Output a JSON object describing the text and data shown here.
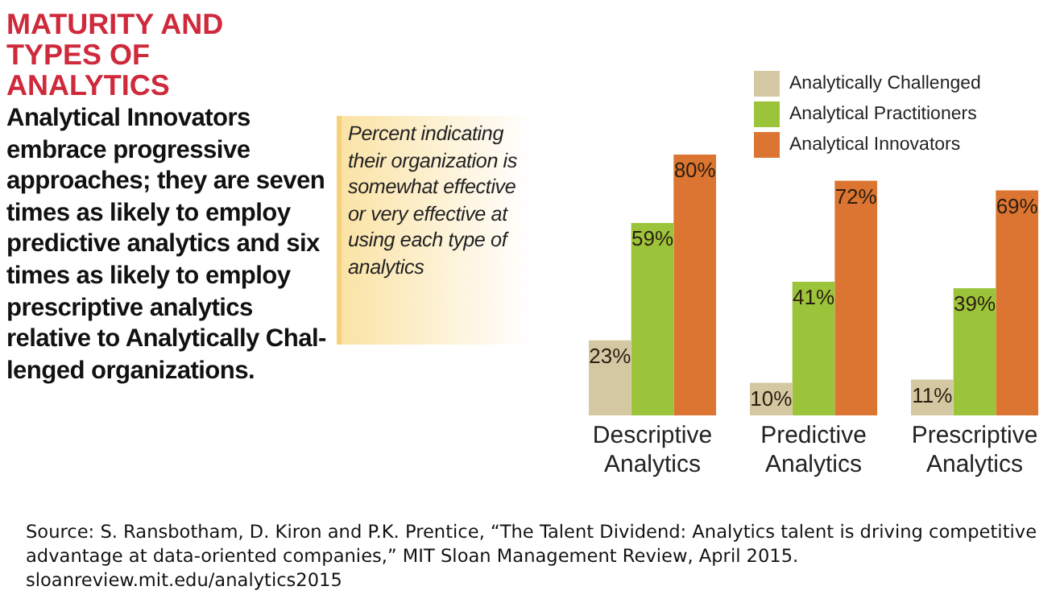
{
  "chart_data": {
    "type": "bar",
    "title": "MATURITY AND TYPES OF ANALYTICS",
    "subtitle": "Analytical Innovators embrace progressive approaches; they are seven times as likely to employ predictive analytics and six times as likely to employ prescriptive analytics relative to Analytically Chal-lenged organizations.",
    "annotations": [
      "Percent indicating their organization is somewhat effective or very effective at using each type of analytics",
      "Source: S. Ransbotham, D. Kiron and P.K. Prentice, “The Talent Dividend: Analytics talent is driving competitive advantage at data-oriented companies,” MIT Sloan Management Review, April 2015. sloanreview.mit.edu/analytics2015"
    ],
    "categories": [
      "Descriptive Analytics",
      "Predictive Analytics",
      "Prescriptive Analytics"
    ],
    "series": [
      {
        "name": "Analytically Challenged",
        "color": "#d3c8a2",
        "values": [
          23,
          10,
          11
        ],
        "value_labels": [
          "23%",
          "10%",
          "11%"
        ]
      },
      {
        "name": "Analytical Practitioners",
        "color": "#9cc43b",
        "values": [
          59,
          41,
          39
        ],
        "value_labels": [
          "59%",
          "41%",
          "39%"
        ]
      },
      {
        "name": "Analytical Innovators",
        "color": "#dc7531",
        "values": [
          80,
          72,
          69
        ],
        "value_labels": [
          "80%",
          "72%",
          "69%"
        ]
      }
    ],
    "legend": "top right",
    "grid": false
  }
}
